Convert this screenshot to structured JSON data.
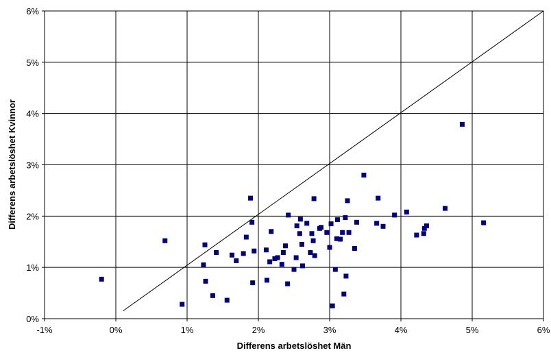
{
  "chart_data": {
    "type": "scatter",
    "title": "",
    "xlabel": "Differens arbetslöshet Män",
    "ylabel": "Differens arbetslöshet Kvinnor",
    "xlim": [
      -1,
      6
    ],
    "ylim": [
      0,
      6
    ],
    "x_ticks": [
      "-1%",
      "0%",
      "1%",
      "2%",
      "3%",
      "4%",
      "5%",
      "6%"
    ],
    "y_ticks": [
      "0%",
      "1%",
      "2%",
      "3%",
      "4%",
      "5%",
      "6%"
    ],
    "grid": true,
    "legend": "none",
    "marker_color": "#000080",
    "line_color": "#000000",
    "reference_line": [
      [
        0.1,
        0.15
      ],
      [
        6.0,
        6.0
      ]
    ],
    "points": [
      [
        -0.2,
        0.77
      ],
      [
        0.69,
        1.52
      ],
      [
        0.93,
        0.28
      ],
      [
        1.23,
        1.05
      ],
      [
        1.25,
        1.44
      ],
      [
        1.26,
        0.73
      ],
      [
        1.36,
        0.45
      ],
      [
        1.41,
        1.29
      ],
      [
        1.56,
        0.36
      ],
      [
        1.63,
        1.24
      ],
      [
        1.69,
        1.13
      ],
      [
        1.79,
        1.27
      ],
      [
        1.83,
        1.59
      ],
      [
        1.89,
        2.35
      ],
      [
        1.91,
        1.88
      ],
      [
        1.92,
        0.7
      ],
      [
        1.94,
        1.32
      ],
      [
        2.11,
        1.34
      ],
      [
        2.12,
        0.75
      ],
      [
        2.16,
        1.11
      ],
      [
        2.18,
        1.7
      ],
      [
        2.23,
        1.17
      ],
      [
        2.27,
        1.19
      ],
      [
        2.33,
        1.06
      ],
      [
        2.35,
        1.29
      ],
      [
        2.38,
        1.42
      ],
      [
        2.41,
        0.68
      ],
      [
        2.42,
        2.02
      ],
      [
        2.5,
        0.96
      ],
      [
        2.53,
        1.19
      ],
      [
        2.54,
        1.81
      ],
      [
        2.58,
        1.66
      ],
      [
        2.59,
        1.94
      ],
      [
        2.61,
        1.45
      ],
      [
        2.62,
        1.03
      ],
      [
        2.68,
        1.86
      ],
      [
        2.73,
        1.29
      ],
      [
        2.75,
        1.66
      ],
      [
        2.77,
        1.52
      ],
      [
        2.78,
        2.34
      ],
      [
        2.79,
        1.23
      ],
      [
        2.86,
        1.76
      ],
      [
        2.88,
        1.78
      ],
      [
        2.96,
        1.68
      ],
      [
        3.0,
        1.39
      ],
      [
        3.02,
        1.85
      ],
      [
        3.04,
        0.25
      ],
      [
        3.08,
        0.96
      ],
      [
        3.1,
        1.56
      ],
      [
        3.11,
        1.93
      ],
      [
        3.15,
        1.55
      ],
      [
        3.18,
        1.68
      ],
      [
        3.2,
        0.48
      ],
      [
        3.22,
        1.97
      ],
      [
        3.23,
        0.83
      ],
      [
        3.25,
        2.3
      ],
      [
        3.27,
        1.68
      ],
      [
        3.35,
        1.37
      ],
      [
        3.38,
        1.88
      ],
      [
        3.48,
        2.8
      ],
      [
        3.66,
        1.86
      ],
      [
        3.68,
        2.35
      ],
      [
        3.75,
        1.8
      ],
      [
        3.91,
        2.02
      ],
      [
        4.08,
        2.08
      ],
      [
        4.22,
        1.63
      ],
      [
        4.32,
        1.66
      ],
      [
        4.33,
        1.76
      ],
      [
        4.36,
        1.81
      ],
      [
        4.62,
        2.15
      ],
      [
        4.86,
        3.79
      ],
      [
        5.16,
        1.87
      ]
    ]
  }
}
